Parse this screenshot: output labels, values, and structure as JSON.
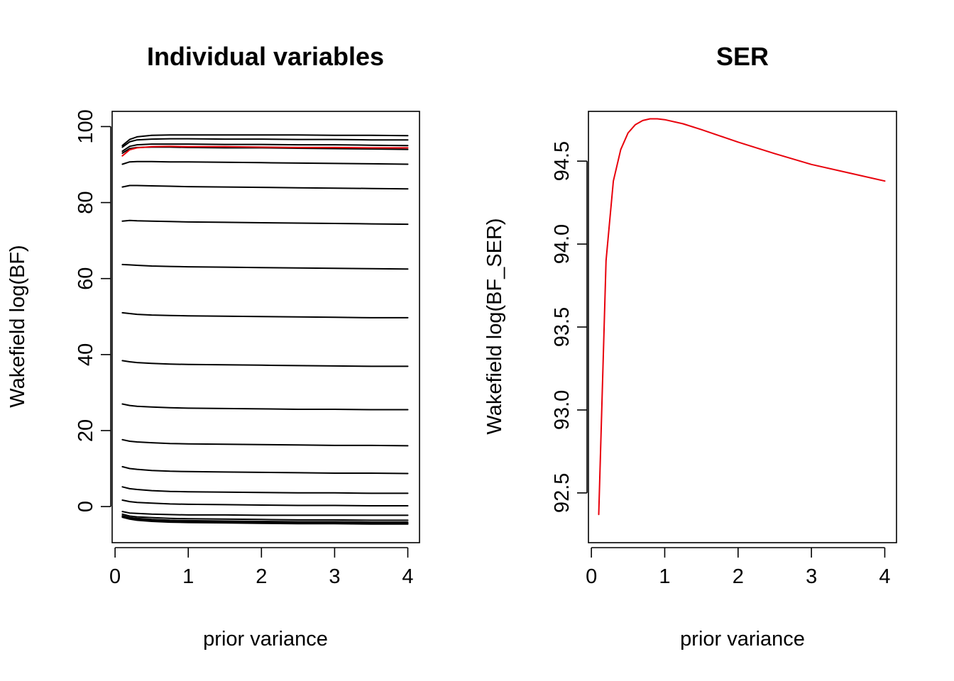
{
  "chart_data": [
    {
      "type": "line",
      "title": "Individual variables",
      "xlabel": "prior variance",
      "ylabel": "Wakefield log(BF)",
      "xlim": [
        -0.04,
        4.16
      ],
      "ylim": [
        -9.5,
        104.0
      ],
      "x_ticks": [
        "0",
        "1",
        "2",
        "3",
        "4"
      ],
      "y_ticks": [
        "0",
        "20",
        "40",
        "60",
        "80",
        "100"
      ],
      "grid": false,
      "legend": "none",
      "x": [
        0.1,
        0.2,
        0.3,
        0.5,
        0.75,
        1.0,
        1.5,
        2.0,
        2.5,
        3.0,
        3.5,
        4.0
      ],
      "highlight_color": "#e8000b",
      "base_color": "#000000",
      "series": [
        {
          "highlight": false,
          "values": [
            95.0,
            96.6,
            97.3,
            97.7,
            97.8,
            97.8,
            97.8,
            97.8,
            97.8,
            97.7,
            97.7,
            97.6
          ]
        },
        {
          "highlight": false,
          "values": [
            94.6,
            96.0,
            96.5,
            96.7,
            96.8,
            96.8,
            96.7,
            96.7,
            96.6,
            96.6,
            96.5,
            96.5
          ]
        },
        {
          "highlight": false,
          "values": [
            93.5,
            94.8,
            95.2,
            95.4,
            95.4,
            95.4,
            95.3,
            95.3,
            95.2,
            95.2,
            95.1,
            95.0
          ]
        },
        {
          "highlight": false,
          "values": [
            93.0,
            94.2,
            94.5,
            94.6,
            94.6,
            94.5,
            94.4,
            94.4,
            94.3,
            94.2,
            94.1,
            94.0
          ]
        },
        {
          "highlight": true,
          "values": [
            92.3,
            93.9,
            94.4,
            94.7,
            94.8,
            94.7,
            94.7,
            94.6,
            94.5,
            94.5,
            94.4,
            94.4
          ]
        },
        {
          "highlight": false,
          "values": [
            90.1,
            90.7,
            90.8,
            90.8,
            90.7,
            90.7,
            90.6,
            90.5,
            90.4,
            90.3,
            90.2,
            90.1
          ]
        },
        {
          "highlight": false,
          "values": [
            84.1,
            84.5,
            84.5,
            84.4,
            84.3,
            84.2,
            84.1,
            84.0,
            83.9,
            83.8,
            83.7,
            83.6
          ]
        },
        {
          "highlight": false,
          "values": [
            75.1,
            75.3,
            75.2,
            75.1,
            75.0,
            74.9,
            74.8,
            74.7,
            74.6,
            74.5,
            74.4,
            74.3
          ]
        },
        {
          "highlight": false,
          "values": [
            63.7,
            63.6,
            63.5,
            63.3,
            63.2,
            63.1,
            63.0,
            62.9,
            62.8,
            62.7,
            62.6,
            62.5
          ]
        },
        {
          "highlight": false,
          "values": [
            51.0,
            50.8,
            50.6,
            50.4,
            50.3,
            50.2,
            50.1,
            50.0,
            49.9,
            49.8,
            49.7,
            49.7
          ]
        },
        {
          "highlight": false,
          "values": [
            38.4,
            38.1,
            37.9,
            37.7,
            37.5,
            37.4,
            37.3,
            37.2,
            37.1,
            37.0,
            36.9,
            36.9
          ]
        },
        {
          "highlight": false,
          "values": [
            27.0,
            26.6,
            26.4,
            26.2,
            26.0,
            25.9,
            25.8,
            25.7,
            25.6,
            25.6,
            25.5,
            25.5
          ]
        },
        {
          "highlight": false,
          "values": [
            17.6,
            17.2,
            17.0,
            16.8,
            16.6,
            16.5,
            16.4,
            16.3,
            16.2,
            16.1,
            16.1,
            16.0
          ]
        },
        {
          "highlight": false,
          "values": [
            10.5,
            10.0,
            9.8,
            9.5,
            9.3,
            9.2,
            9.1,
            9.0,
            8.9,
            8.8,
            8.8,
            8.7
          ]
        },
        {
          "highlight": false,
          "values": [
            5.2,
            4.7,
            4.5,
            4.2,
            4.0,
            3.9,
            3.8,
            3.7,
            3.6,
            3.6,
            3.5,
            3.5
          ]
        },
        {
          "highlight": false,
          "values": [
            1.7,
            1.3,
            1.1,
            0.9,
            0.7,
            0.6,
            0.5,
            0.4,
            0.3,
            0.3,
            0.2,
            0.2
          ]
        },
        {
          "highlight": false,
          "values": [
            -1.3,
            -1.7,
            -1.8,
            -2.0,
            -2.1,
            -2.2,
            -2.2,
            -2.3,
            -2.3,
            -2.3,
            -2.3,
            -2.3
          ]
        },
        {
          "highlight": false,
          "values": [
            -2.0,
            -2.5,
            -2.7,
            -2.9,
            -3.1,
            -3.2,
            -3.3,
            -3.4,
            -3.5,
            -3.5,
            -3.6,
            -3.6
          ]
        },
        {
          "highlight": false,
          "values": [
            -2.4,
            -2.9,
            -3.1,
            -3.4,
            -3.6,
            -3.7,
            -3.8,
            -3.9,
            -4.0,
            -4.0,
            -4.1,
            -4.1
          ]
        },
        {
          "highlight": false,
          "values": [
            -2.6,
            -3.1,
            -3.4,
            -3.7,
            -3.9,
            -4.0,
            -4.1,
            -4.2,
            -4.3,
            -4.3,
            -4.4,
            -4.4
          ]
        },
        {
          "highlight": false,
          "values": [
            -2.8,
            -3.3,
            -3.6,
            -3.9,
            -4.1,
            -4.2,
            -4.3,
            -4.4,
            -4.5,
            -4.5,
            -4.6,
            -4.6
          ]
        }
      ]
    },
    {
      "type": "line",
      "title": "SER",
      "xlabel": "prior variance",
      "ylabel": "Wakefield log(BF_SER)",
      "xlim": [
        -0.04,
        4.16
      ],
      "ylim": [
        92.2,
        94.8
      ],
      "x_ticks": [
        "0",
        "1",
        "2",
        "3",
        "4"
      ],
      "y_ticks": [
        "92.5",
        "93.0",
        "93.5",
        "94.0",
        "94.5"
      ],
      "grid": false,
      "legend": "none",
      "series": [
        {
          "color": "#e8000b",
          "x": [
            0.1,
            0.2,
            0.3,
            0.4,
            0.5,
            0.6,
            0.7,
            0.8,
            0.9,
            1.0,
            1.25,
            1.5,
            2.0,
            2.5,
            3.0,
            3.5,
            4.0
          ],
          "values": [
            92.37,
            93.9,
            94.38,
            94.57,
            94.67,
            94.72,
            94.745,
            94.755,
            94.755,
            94.75,
            94.725,
            94.69,
            94.615,
            94.545,
            94.48,
            94.43,
            94.38
          ]
        }
      ]
    }
  ]
}
